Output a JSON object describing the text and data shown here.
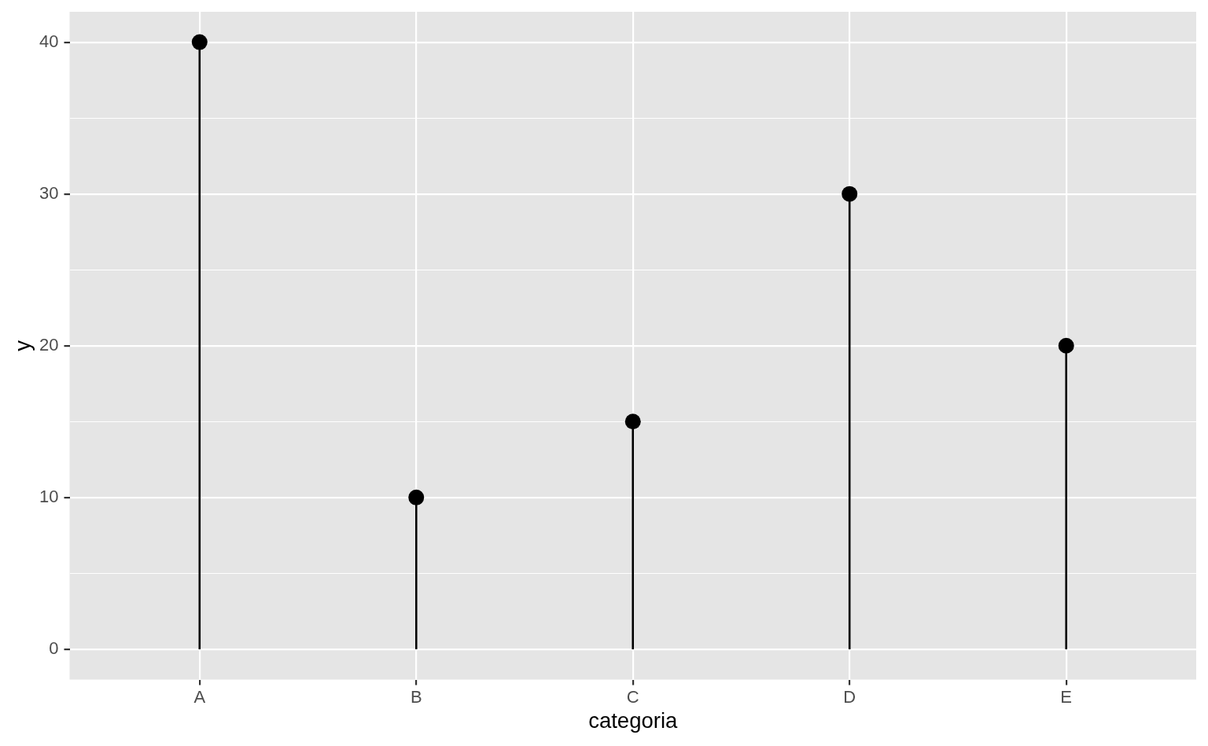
{
  "chart_data": {
    "type": "lollipop",
    "categories": [
      "A",
      "B",
      "C",
      "D",
      "E"
    ],
    "values": [
      40,
      10,
      15,
      30,
      20
    ],
    "color": "#000000",
    "xlabel": "categoria",
    "ylabel": "y",
    "ylim": [
      -2,
      42
    ],
    "yticks": [
      0,
      {
        "value": 5,
        "label": null
      },
      10,
      {
        "value": 15,
        "label": null
      },
      20,
      {
        "value": 25,
        "label": null
      },
      30,
      {
        "value": 35,
        "label": null
      },
      40
    ],
    "grid": true,
    "marker": "circle"
  }
}
